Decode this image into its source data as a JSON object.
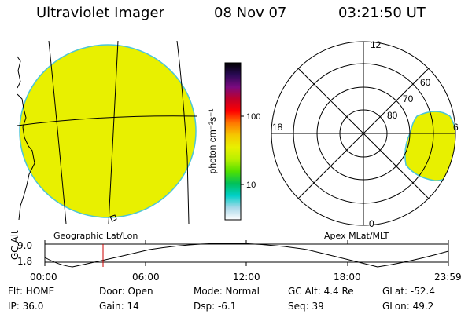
{
  "header": {
    "instrument": "Ultraviolet Imager",
    "date": "08 Nov 07",
    "time": "03:21:50 UT"
  },
  "colors": {
    "fill": "#e8f000",
    "edge": "#4cc5d8",
    "cursor": "#cc0000"
  },
  "colorbar": {
    "unit_label": "photon cm⁻²s⁻¹",
    "tick_100": "100",
    "tick_10": "10",
    "stops": [
      "#000000",
      "#2a0a55",
      "#7a0a80",
      "#c0002a",
      "#ff0000",
      "#ff7a00",
      "#f5c800",
      "#e8f000",
      "#b8f000",
      "#50e000",
      "#00c05a",
      "#00d0c8",
      "#a8d8e8",
      "#ffffff"
    ]
  },
  "geo_map": {
    "caption": "Geographic Lat/Lon"
  },
  "polar_map": {
    "caption": "Apex MLat/MLT",
    "mlt_top": "12",
    "mlt_left": "18",
    "mlt_right": "6",
    "mlt_bottom": "0",
    "lat_60": "60",
    "lat_70": "70",
    "lat_80": "80"
  },
  "altitude_plot": {
    "ylabel": "GC Alt",
    "ymax": "9.0",
    "ymin": "1.8",
    "x_ticks": [
      "00:00",
      "06:00",
      "12:00",
      "18:00",
      "23:59"
    ]
  },
  "footer": {
    "flt": "Flt: HOME",
    "ip": "IP: 36.0",
    "door": "Door: Open",
    "gain": "Gain: 14",
    "mode": "Mode: Normal",
    "dsp": "Dsp:  -6.1",
    "gc_alt": "GC Alt: 4.4 Re",
    "seq": "Seq: 39",
    "glat": "GLat: -52.4",
    "glon": "GLon:  49.2"
  }
}
